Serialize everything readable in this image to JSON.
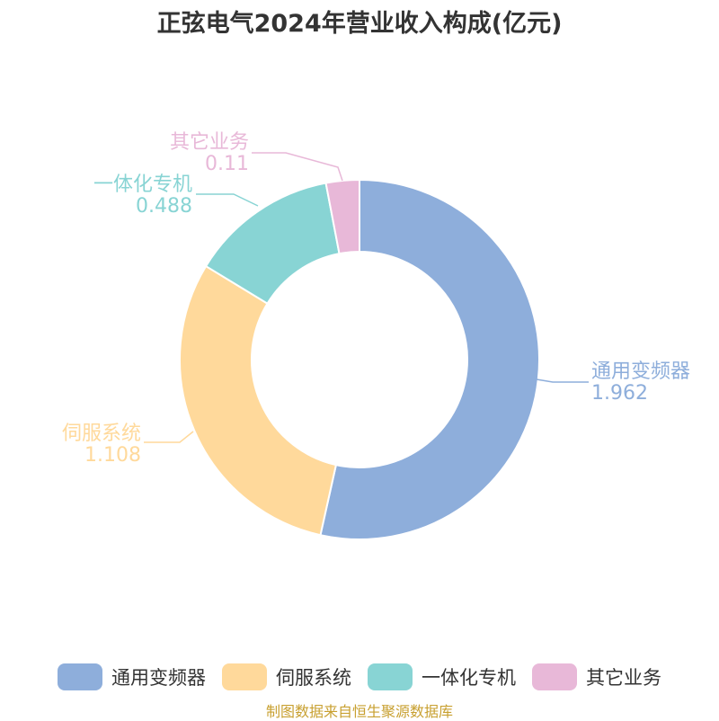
{
  "title": "正弦电气2024年营业收入构成(亿元)",
  "source": "制图数据来自恒生聚源数据库",
  "chart_data": {
    "type": "pie",
    "title": "正弦电气2024年营业收入构成(亿元)",
    "donut": true,
    "legend_position": "bottom",
    "series": [
      {
        "name": "通用变频器",
        "value": 1.962,
        "label": "1.962",
        "color": "#8eaedb"
      },
      {
        "name": "伺服系统",
        "value": 1.108,
        "label": "1.108",
        "color": "#ffd99b"
      },
      {
        "name": "一体化专机",
        "value": 0.488,
        "label": "0.488",
        "color": "#88d4d4"
      },
      {
        "name": "其它业务",
        "value": 0.11,
        "label": "0.11",
        "color": "#e8b8d8"
      }
    ]
  }
}
